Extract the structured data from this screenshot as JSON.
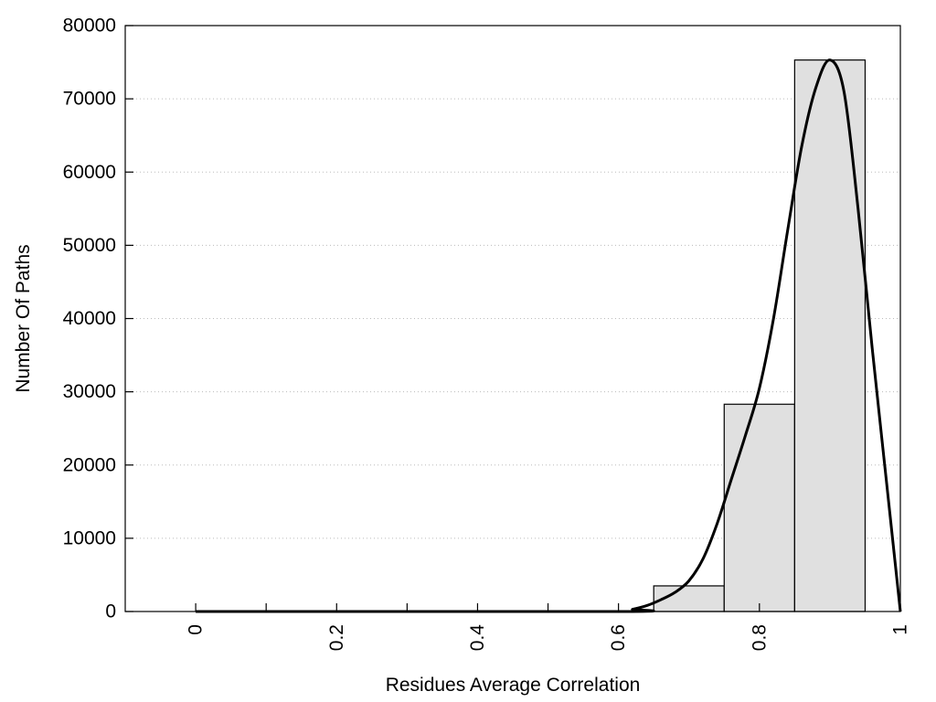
{
  "chart_data": {
    "type": "bar",
    "title": "",
    "xlabel": "Residues Average Correlation",
    "ylabel": "Number Of Paths",
    "xlim": [
      -0.1,
      1.0
    ],
    "ylim": [
      0,
      80000
    ],
    "grid": {
      "y": true,
      "x": false,
      "style": "dotted"
    },
    "x_ticks": [
      0,
      0.2,
      0.4,
      0.6,
      0.8,
      1
    ],
    "x_tick_labels": [
      "0",
      "0.2",
      "0.4",
      "0.6",
      "0.8",
      "1"
    ],
    "x_minor_ticks": [
      0.1,
      0.3,
      0.5
    ],
    "y_ticks": [
      0,
      10000,
      20000,
      30000,
      40000,
      50000,
      60000,
      70000,
      80000
    ],
    "y_tick_labels": [
      "0",
      "10000",
      "20000",
      "30000",
      "40000",
      "50000",
      "60000",
      "70000",
      "80000"
    ],
    "bars": [
      {
        "x_start": 0.65,
        "x_end": 0.75,
        "value": 3500
      },
      {
        "x_start": 0.75,
        "x_end": 0.85,
        "value": 28300
      },
      {
        "x_start": 0.85,
        "x_end": 0.95,
        "value": 75300
      }
    ],
    "fit_curve": {
      "x": [
        0,
        0.6,
        0.62,
        0.64,
        0.66,
        0.68,
        0.7,
        0.72,
        0.74,
        0.76,
        0.78,
        0.8,
        0.82,
        0.84,
        0.86,
        0.88,
        0.9,
        0.92,
        0.94,
        0.96,
        0.98,
        1.0
      ],
      "y": [
        0,
        0,
        300,
        800,
        1600,
        2600,
        4200,
        7200,
        12000,
        18000,
        24000,
        30500,
        40000,
        52000,
        63500,
        71500,
        75300,
        71000,
        55000,
        36000,
        18000,
        0
      ]
    },
    "colors": {
      "bar_fill": "#e0e0e0",
      "bar_stroke": "#000000",
      "curve": "#000000",
      "grid": "#bbbbbb",
      "axis": "#000000"
    }
  }
}
